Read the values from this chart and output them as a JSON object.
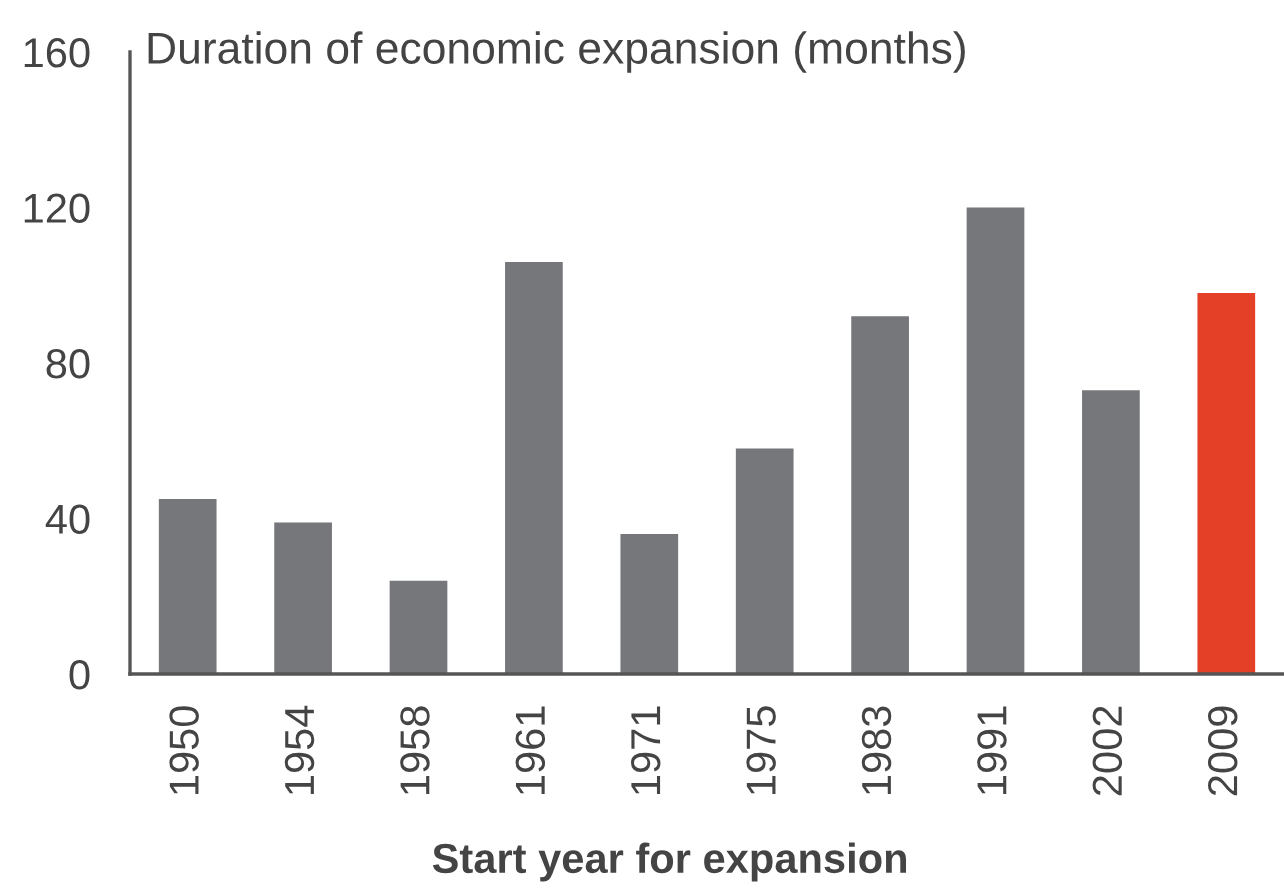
{
  "chart_data": {
    "type": "bar",
    "ylabel": "Duration of economic expansion (months)",
    "xlabel": "Start year for expansion",
    "categories": [
      "1950",
      "1954",
      "1958",
      "1961",
      "1971",
      "1975",
      "1983",
      "1991",
      "2002",
      "2009"
    ],
    "values": [
      45,
      39,
      24,
      106,
      36,
      58,
      92,
      120,
      73,
      98
    ],
    "colors": [
      "#76777a",
      "#76777a",
      "#76777a",
      "#76777a",
      "#76777a",
      "#76777a",
      "#76777a",
      "#76777a",
      "#76777a",
      "#e34027"
    ],
    "ylim": [
      0,
      160
    ],
    "yticks": [
      0,
      40,
      80,
      120,
      160
    ],
    "grid": false,
    "legend": false
  }
}
